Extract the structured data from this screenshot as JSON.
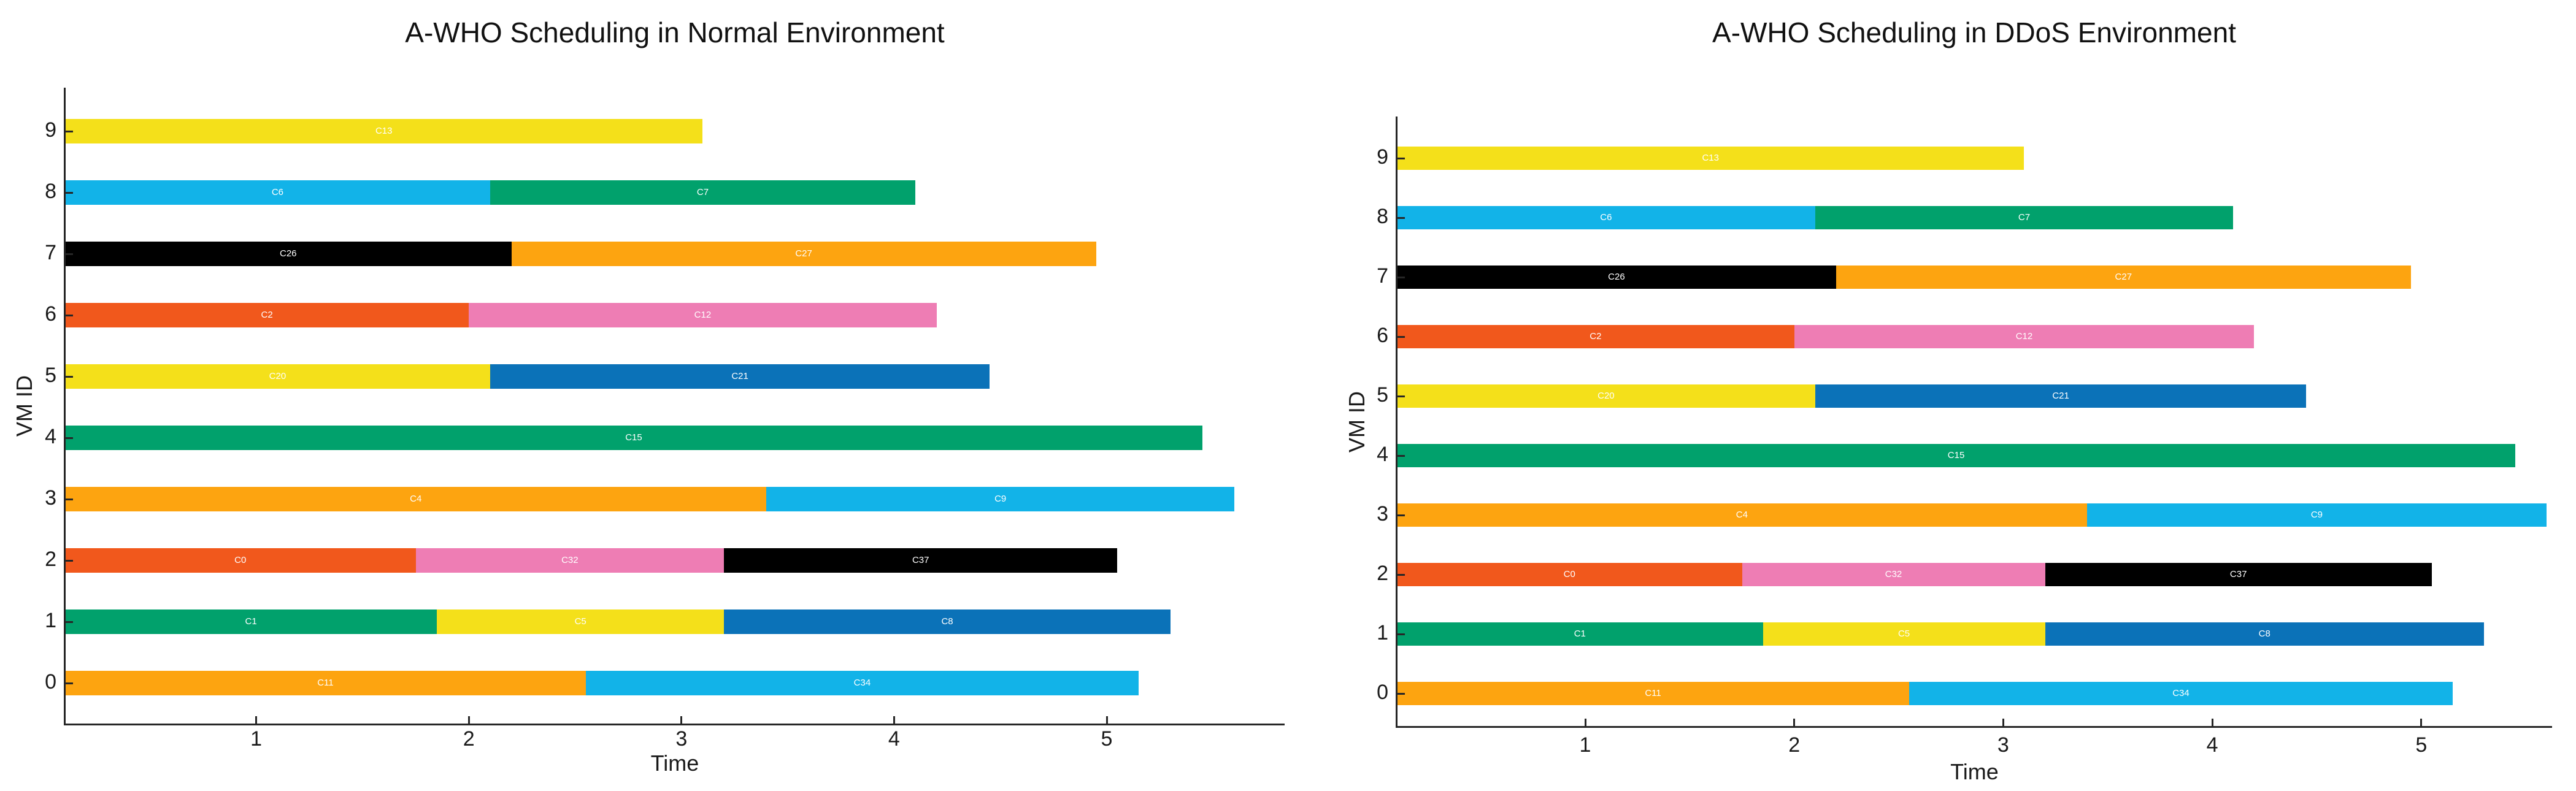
{
  "figure": {
    "background": "#ffffff",
    "text_color": "#1a1a1a",
    "axis_color": "#262626",
    "bar_label_color": "#ffffff"
  },
  "palette": {
    "yellow": "#F4E01A",
    "cyan": "#12B3E8",
    "green": "#01A16C",
    "orange": "#FDA410",
    "orangered": "#F1581C",
    "pink": "#EE7DB4",
    "blue": "#0B72B8",
    "black": "#000000"
  },
  "chart_data": [
    {
      "type": "bar",
      "subtype": "gantt-horizontal",
      "title": "A-WHO Scheduling in Normal Environment",
      "xlabel": "Time",
      "ylabel": "VM ID",
      "xlim": [
        0,
        5.85
      ],
      "x_ticks": [
        1,
        2,
        3,
        4,
        5
      ],
      "grid": false,
      "legend": null,
      "rows": [
        {
          "vm": 9,
          "segments": [
            {
              "label": "C13",
              "start": 0,
              "end": 3.1,
              "color": "#F4E01A"
            }
          ]
        },
        {
          "vm": 8,
          "segments": [
            {
              "label": "C6",
              "start": 0,
              "end": 2.1,
              "color": "#12B3E8"
            },
            {
              "label": "C7",
              "start": 2.1,
              "end": 4.1,
              "color": "#01A16C"
            }
          ]
        },
        {
          "vm": 7,
          "segments": [
            {
              "label": "C26",
              "start": 0,
              "end": 2.2,
              "color": "#000000"
            },
            {
              "label": "C27",
              "start": 2.2,
              "end": 4.95,
              "color": "#FDA410"
            }
          ]
        },
        {
          "vm": 6,
          "segments": [
            {
              "label": "C2",
              "start": 0,
              "end": 2.0,
              "color": "#F1581C"
            },
            {
              "label": "C12",
              "start": 2.0,
              "end": 4.2,
              "color": "#EE7DB4"
            }
          ]
        },
        {
          "vm": 5,
          "segments": [
            {
              "label": "C20",
              "start": 0,
              "end": 2.1,
              "color": "#F4E01A"
            },
            {
              "label": "C21",
              "start": 2.1,
              "end": 4.45,
              "color": "#0B72B8"
            }
          ]
        },
        {
          "vm": 4,
          "segments": [
            {
              "label": "C15",
              "start": 0,
              "end": 5.45,
              "color": "#01A16C"
            }
          ]
        },
        {
          "vm": 3,
          "segments": [
            {
              "label": "C4",
              "start": 0,
              "end": 3.4,
              "color": "#FDA410"
            },
            {
              "label": "C9",
              "start": 3.4,
              "end": 5.6,
              "color": "#12B3E8"
            }
          ]
        },
        {
          "vm": 2,
          "segments": [
            {
              "label": "C0",
              "start": 0,
              "end": 1.75,
              "color": "#F1581C"
            },
            {
              "label": "C32",
              "start": 1.75,
              "end": 3.2,
              "color": "#EE7DB4"
            },
            {
              "label": "C37",
              "start": 3.2,
              "end": 5.05,
              "color": "#000000"
            }
          ]
        },
        {
          "vm": 1,
          "segments": [
            {
              "label": "C1",
              "start": 0,
              "end": 1.85,
              "color": "#01A16C"
            },
            {
              "label": "C5",
              "start": 1.85,
              "end": 3.2,
              "color": "#F4E01A"
            },
            {
              "label": "C8",
              "start": 3.2,
              "end": 5.3,
              "color": "#0B72B8"
            }
          ]
        },
        {
          "vm": 0,
          "segments": [
            {
              "label": "C11",
              "start": 0,
              "end": 2.55,
              "color": "#FDA410"
            },
            {
              "label": "C34",
              "start": 2.55,
              "end": 5.15,
              "color": "#12B3E8"
            }
          ]
        }
      ]
    },
    {
      "type": "bar",
      "subtype": "gantt-horizontal",
      "title": "A-WHO Scheduling in DDoS Environment",
      "xlabel": "Time",
      "ylabel": "VM ID",
      "xlim": [
        0,
        5.65
      ],
      "x_ticks": [
        1,
        2,
        3,
        4,
        5
      ],
      "grid": false,
      "legend": null,
      "rows": [
        {
          "vm": 9,
          "segments": [
            {
              "label": "C13",
              "start": 0,
              "end": 3.1,
              "color": "#F4E01A"
            }
          ]
        },
        {
          "vm": 8,
          "segments": [
            {
              "label": "C6",
              "start": 0,
              "end": 2.1,
              "color": "#12B3E8"
            },
            {
              "label": "C7",
              "start": 2.1,
              "end": 4.1,
              "color": "#01A16C"
            }
          ]
        },
        {
          "vm": 7,
          "segments": [
            {
              "label": "C26",
              "start": 0,
              "end": 2.2,
              "color": "#000000"
            },
            {
              "label": "C27",
              "start": 2.2,
              "end": 4.95,
              "color": "#FDA410"
            }
          ]
        },
        {
          "vm": 6,
          "segments": [
            {
              "label": "C2",
              "start": 0,
              "end": 2.0,
              "color": "#F1581C"
            },
            {
              "label": "C12",
              "start": 2.0,
              "end": 4.2,
              "color": "#EE7DB4"
            }
          ]
        },
        {
          "vm": 5,
          "segments": [
            {
              "label": "C20",
              "start": 0,
              "end": 2.1,
              "color": "#F4E01A"
            },
            {
              "label": "C21",
              "start": 2.1,
              "end": 4.45,
              "color": "#0B72B8"
            }
          ]
        },
        {
          "vm": 4,
          "segments": [
            {
              "label": "C15",
              "start": 0,
              "end": 5.45,
              "color": "#01A16C"
            }
          ]
        },
        {
          "vm": 3,
          "segments": [
            {
              "label": "C4",
              "start": 0,
              "end": 3.4,
              "color": "#FDA410"
            },
            {
              "label": "C9",
              "start": 3.4,
              "end": 5.6,
              "color": "#12B3E8"
            }
          ]
        },
        {
          "vm": 2,
          "segments": [
            {
              "label": "C0",
              "start": 0,
              "end": 1.75,
              "color": "#F1581C"
            },
            {
              "label": "C32",
              "start": 1.75,
              "end": 3.2,
              "color": "#EE7DB4"
            },
            {
              "label": "C37",
              "start": 3.2,
              "end": 5.05,
              "color": "#000000"
            }
          ]
        },
        {
          "vm": 1,
          "segments": [
            {
              "label": "C1",
              "start": 0,
              "end": 1.85,
              "color": "#01A16C"
            },
            {
              "label": "C5",
              "start": 1.85,
              "end": 3.2,
              "color": "#F4E01A"
            },
            {
              "label": "C8",
              "start": 3.2,
              "end": 5.3,
              "color": "#0B72B8"
            }
          ]
        },
        {
          "vm": 0,
          "segments": [
            {
              "label": "C11",
              "start": 0,
              "end": 2.55,
              "color": "#FDA410"
            },
            {
              "label": "C34",
              "start": 2.55,
              "end": 5.15,
              "color": "#12B3E8"
            }
          ]
        }
      ]
    }
  ]
}
